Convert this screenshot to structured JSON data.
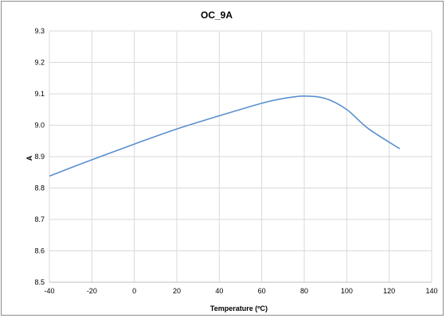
{
  "chart_data": {
    "type": "line",
    "title": "OC_9A",
    "xlabel": "Temperature (ºC)",
    "ylabel": "A",
    "xlim": [
      -40,
      140
    ],
    "ylim": [
      8.5,
      9.3
    ],
    "xticks": [
      -40,
      -20,
      0,
      20,
      40,
      60,
      80,
      100,
      120,
      140
    ],
    "yticks": [
      8.5,
      8.6,
      8.7,
      8.8,
      8.9,
      9.0,
      9.1,
      9.2,
      9.3
    ],
    "xtick_labels": [
      "-40",
      "-20",
      "0",
      "20",
      "40",
      "60",
      "80",
      "100",
      "120",
      "140"
    ],
    "ytick_labels": [
      "8.5",
      "8.6",
      "8.7",
      "8.8",
      "8.9",
      "9.0",
      "9.1",
      "9.2",
      "9.3"
    ],
    "grid": true,
    "legend": "none",
    "series": [
      {
        "color": "#5b8fd0",
        "x": [
          -40,
          -20,
          0,
          20,
          40,
          60,
          70,
          80,
          90,
          100,
          110,
          125
        ],
        "y": [
          8.838,
          8.89,
          8.94,
          8.988,
          9.03,
          9.07,
          9.085,
          9.093,
          9.085,
          9.05,
          8.99,
          8.925
        ]
      }
    ]
  }
}
